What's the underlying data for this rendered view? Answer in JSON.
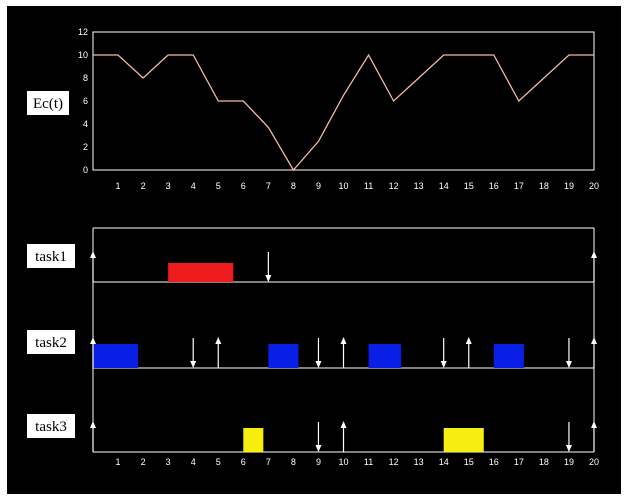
{
  "chart_data": [
    {
      "type": "line",
      "ylabel": "Ec(t)",
      "xlim": [
        0,
        20
      ],
      "ylim": [
        0,
        12
      ],
      "x_ticks": [
        "1",
        "2",
        "3",
        "4",
        "5",
        "6",
        "7",
        "8",
        "9",
        "10",
        "11",
        "12",
        "13",
        "14",
        "15",
        "16",
        "17",
        "18",
        "19",
        "20"
      ],
      "y_ticks": [
        "0",
        "2",
        "4",
        "6",
        "8",
        "10",
        "12"
      ],
      "series": [
        {
          "x": [
            0,
            1,
            2,
            3,
            4,
            5,
            6,
            7,
            8,
            9,
            10,
            11,
            12,
            13,
            14,
            15,
            16,
            17,
            18,
            19,
            20
          ],
          "y": [
            10,
            10,
            8,
            10,
            10,
            6,
            6,
            3.7,
            0,
            2.5,
            6.5,
            10,
            6,
            8,
            10,
            10,
            10,
            6,
            8,
            10,
            10
          ]
        }
      ],
      "colors": {
        "line": "#f4b9a6",
        "axes": "#ffffff",
        "background": "#000000"
      }
    },
    {
      "type": "bar",
      "x_ticks": [
        "1",
        "2",
        "3",
        "4",
        "5",
        "6",
        "7",
        "8",
        "9",
        "10",
        "11",
        "12",
        "13",
        "14",
        "15",
        "16",
        "17",
        "18",
        "19",
        "20"
      ],
      "xlim": [
        0,
        20
      ],
      "tasks": [
        {
          "label": "task1",
          "color": "#ee1c1c",
          "executions": [
            [
              3,
              5.6
            ]
          ],
          "arrivals": [
            0,
            20
          ],
          "deadlines": [
            7
          ]
        },
        {
          "label": "task2",
          "color": "#0a1fe6",
          "executions": [
            [
              0,
              1.8
            ],
            [
              7,
              8.2
            ],
            [
              11,
              12.3
            ],
            [
              16,
              17.2
            ]
          ],
          "arrivals": [
            0,
            5,
            10,
            15,
            20
          ],
          "deadlines": [
            4,
            9,
            14,
            19
          ]
        },
        {
          "label": "task3",
          "color": "#f6ee0e",
          "executions": [
            [
              6,
              6.8
            ],
            [
              14,
              15.6
            ]
          ],
          "arrivals": [
            0,
            10,
            20
          ],
          "deadlines": [
            9,
            19
          ]
        }
      ]
    }
  ]
}
